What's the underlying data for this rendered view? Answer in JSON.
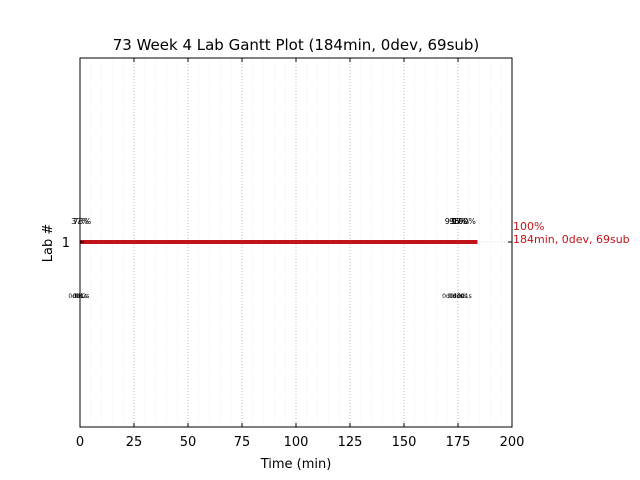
{
  "chart_data": {
    "type": "gantt",
    "title": "73 Week 4 Lab Gantt Plot (184min, 0dev, 69sub)",
    "xlabel": "Time (min)",
    "ylabel": "Lab #",
    "xlim": [
      0,
      200
    ],
    "xticks": [
      0,
      25,
      50,
      75,
      100,
      125,
      150,
      175,
      200
    ],
    "minor_xtick_step": 5,
    "y_categories": [
      "1"
    ],
    "grid": "vertical dotted",
    "series": [
      {
        "lab": "1",
        "start": 0,
        "end": 184,
        "color": "#c0141a",
        "end_label": "100%",
        "summary": "184min, 0dev, 69sub",
        "upper_labels": [
          {
            "x": 0,
            "text": "37%"
          },
          {
            "x": 1,
            "text": "73%"
          },
          {
            "x": 173,
            "text": "93%"
          },
          {
            "x": 175,
            "text": "95%"
          },
          {
            "x": 176,
            "text": "97%"
          },
          {
            "x": 178,
            "text": "100%"
          }
        ],
        "lower_labels": [
          {
            "x": -2,
            "text": "0d0s"
          },
          {
            "x": 0,
            "text": "0d1s"
          },
          {
            "x": 1,
            "text": "0d2s"
          },
          {
            "x": 171,
            "text": "0d0s"
          },
          {
            "x": 174,
            "text": "0d1s"
          },
          {
            "x": 176,
            "text": "0d0s"
          },
          {
            "x": 178,
            "text": "0d1s"
          }
        ]
      }
    ]
  }
}
